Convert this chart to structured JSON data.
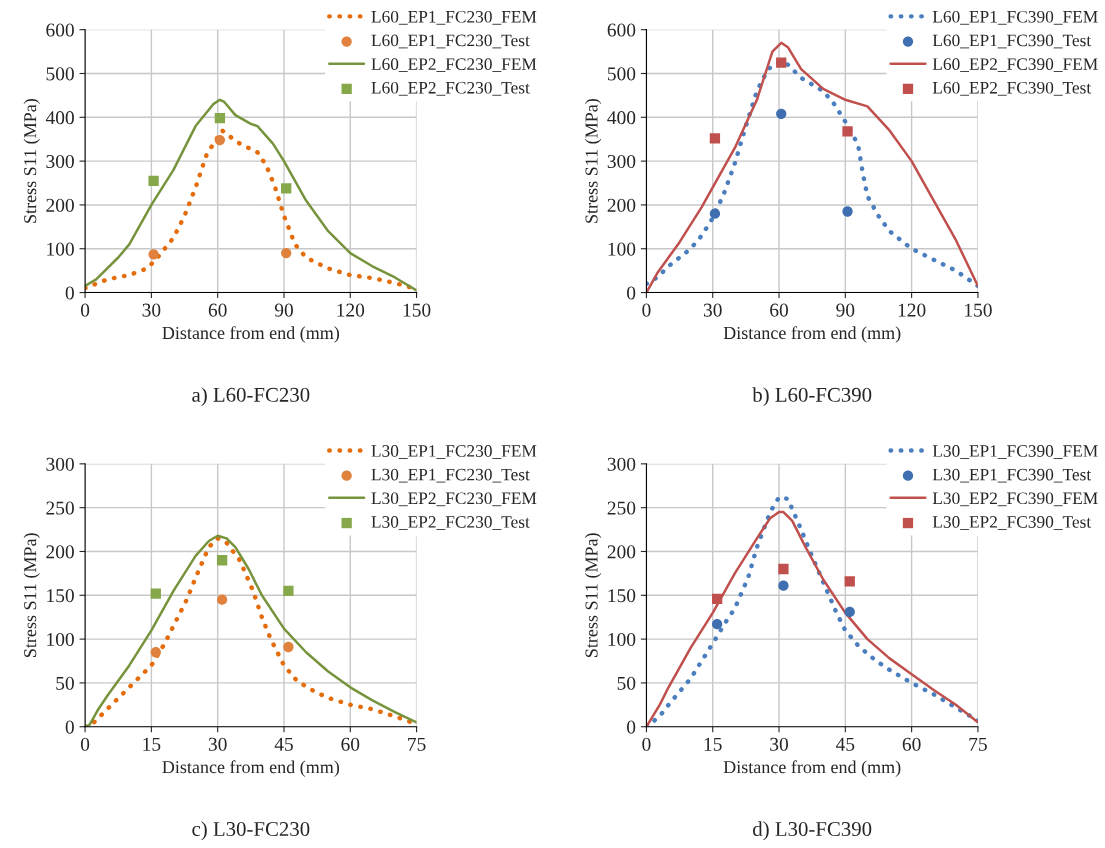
{
  "chart_data": [
    {
      "type": "line",
      "title": "a) L60-FC230",
      "xlabel": "Distance from end (mm)",
      "ylabel": "Stress S11 (MPa)",
      "xlim": [
        0,
        150
      ],
      "ylim": [
        0,
        600
      ],
      "xticks": [
        0,
        30,
        60,
        90,
        120,
        150
      ],
      "yticks": [
        0,
        100,
        200,
        300,
        400,
        500,
        600
      ],
      "grid": true,
      "legend": "top right",
      "series": [
        {
          "name": "L60_EP1_FC230_FEM",
          "type": "line",
          "line_style": "dotted",
          "color": "#e46c0a",
          "x": [
            0,
            10,
            20,
            28,
            32,
            40,
            45,
            50,
            55,
            60,
            62,
            65,
            70,
            78,
            82,
            86,
            90,
            95,
            100,
            110,
            120,
            130,
            140,
            150
          ],
          "values": [
            10,
            30,
            40,
            55,
            75,
            125,
            175,
            240,
            315,
            355,
            370,
            358,
            340,
            320,
            290,
            240,
            175,
            110,
            80,
            55,
            40,
            33,
            22,
            8
          ]
        },
        {
          "name": "L60_EP1_FC230_Test",
          "type": "scatter",
          "marker": "circle",
          "color": "#e0823d",
          "x": [
            31,
            61,
            91
          ],
          "values": [
            87,
            348,
            90
          ]
        },
        {
          "name": "L60_EP2_FC230_FEM",
          "type": "line",
          "line_style": "solid",
          "color": "#77933c",
          "x": [
            0,
            5,
            15,
            20,
            30,
            40,
            50,
            58,
            61,
            63,
            68,
            75,
            78,
            85,
            90,
            100,
            110,
            120,
            130,
            140,
            150
          ],
          "values": [
            15,
            30,
            80,
            110,
            200,
            280,
            380,
            430,
            440,
            435,
            405,
            385,
            380,
            340,
            300,
            210,
            140,
            90,
            60,
            35,
            5
          ]
        },
        {
          "name": "L60_EP2_FC230_Test",
          "type": "scatter",
          "marker": "square",
          "color": "#86a84a",
          "x": [
            31,
            61,
            91
          ],
          "values": [
            255,
            398,
            238
          ]
        }
      ]
    },
    {
      "type": "line",
      "title": "b) L60-FC390",
      "xlabel": "Distance from end (mm)",
      "ylabel": "Stress S11 (MPa)",
      "xlim": [
        0,
        150
      ],
      "ylim": [
        0,
        600
      ],
      "xticks": [
        0,
        30,
        60,
        90,
        120,
        150
      ],
      "yticks": [
        0,
        100,
        200,
        300,
        400,
        500,
        600
      ],
      "grid": true,
      "legend": "top right",
      "series": [
        {
          "name": "L60_EP1_FC390_FEM",
          "type": "line",
          "line_style": "dotted",
          "color": "#4a7ebf",
          "x": [
            0,
            5,
            10,
            15,
            20,
            25,
            30,
            35,
            40,
            45,
            50,
            55,
            60,
            63,
            70,
            80,
            85,
            90,
            94,
            96,
            98,
            100,
            105,
            110,
            115,
            120,
            130,
            140,
            150
          ],
          "values": [
            20,
            35,
            60,
            80,
            100,
            130,
            170,
            225,
            295,
            380,
            460,
            510,
            525,
            525,
            490,
            460,
            430,
            390,
            355,
            330,
            270,
            220,
            175,
            140,
            120,
            100,
            75,
            50,
            15
          ]
        },
        {
          "name": "L60_EP1_FC390_Test",
          "type": "scatter",
          "marker": "circle",
          "color": "#3f6fb0",
          "x": [
            31,
            61,
            91
          ],
          "values": [
            180,
            408,
            185
          ]
        },
        {
          "name": "L60_EP2_FC390_FEM",
          "type": "line",
          "line_style": "solid",
          "color": "#c0504d",
          "x": [
            0,
            5,
            15,
            25,
            30,
            40,
            50,
            57,
            61,
            64,
            70,
            80,
            90,
            100,
            110,
            120,
            130,
            140,
            150
          ],
          "values": [
            0,
            45,
            115,
            195,
            240,
            330,
            440,
            550,
            570,
            560,
            510,
            465,
            440,
            425,
            370,
            300,
            210,
            120,
            15
          ]
        },
        {
          "name": "L60_EP2_FC390_Test",
          "type": "scatter",
          "marker": "square",
          "color": "#c0504d",
          "x": [
            31,
            61,
            91
          ],
          "values": [
            352,
            525,
            368
          ]
        }
      ]
    },
    {
      "type": "line",
      "title": "c) L30-FC230",
      "xlabel": "Distance from end (mm)",
      "ylabel": "Stress S11 (MPa)",
      "xlim": [
        0,
        75
      ],
      "ylim": [
        0,
        300
      ],
      "xticks": [
        0,
        15,
        30,
        45,
        60,
        75
      ],
      "yticks": [
        0,
        50,
        100,
        150,
        200,
        250,
        300
      ],
      "grid": true,
      "legend": "top right",
      "series": [
        {
          "name": "L30_EP1_FC230_FEM",
          "type": "line",
          "line_style": "dotted",
          "color": "#e46c0a",
          "x": [
            0,
            2,
            5,
            10,
            15,
            18,
            20,
            23,
            25,
            28,
            30,
            32,
            35,
            38,
            40,
            42,
            45,
            48,
            52,
            55,
            60,
            65,
            70,
            75
          ],
          "values": [
            0,
            5,
            20,
            45,
            70,
            95,
            115,
            145,
            170,
            205,
            215,
            210,
            190,
            155,
            125,
            100,
            70,
            52,
            40,
            33,
            25,
            20,
            12,
            3
          ]
        },
        {
          "name": "L30_EP1_FC230_Test",
          "type": "scatter",
          "marker": "circle",
          "color": "#e0823d",
          "x": [
            16,
            31,
            46
          ],
          "values": [
            85,
            145,
            91
          ]
        },
        {
          "name": "L30_EP2_FC230_FEM",
          "type": "line",
          "line_style": "solid",
          "color": "#77933c",
          "x": [
            0,
            1,
            3,
            5,
            10,
            15,
            20,
            25,
            28,
            30,
            32,
            34,
            37,
            40,
            45,
            50,
            55,
            60,
            65,
            70,
            75
          ],
          "values": [
            0,
            2,
            20,
            35,
            70,
            110,
            155,
            195,
            212,
            218,
            215,
            205,
            180,
            150,
            112,
            85,
            63,
            45,
            30,
            17,
            5
          ]
        },
        {
          "name": "L30_EP2_FC230_Test",
          "type": "scatter",
          "marker": "square",
          "color": "#86a84a",
          "x": [
            16,
            31,
            46
          ],
          "values": [
            152,
            190,
            155
          ]
        }
      ]
    },
    {
      "type": "line",
      "title": "d) L30-FC390",
      "xlabel": "Distance from end (mm)",
      "ylabel": "Stress S11 (MPa)",
      "xlim": [
        0,
        75
      ],
      "ylim": [
        0,
        300
      ],
      "xticks": [
        0,
        15,
        30,
        45,
        60,
        75
      ],
      "yticks": [
        0,
        50,
        100,
        150,
        200,
        250,
        300
      ],
      "grid": true,
      "legend": "top right",
      "series": [
        {
          "name": "L30_EP1_FC390_FEM",
          "type": "line",
          "line_style": "dotted",
          "color": "#4a7ebf",
          "x": [
            0,
            3,
            5,
            10,
            15,
            18,
            20,
            23,
            25,
            28,
            30,
            32,
            35,
            37,
            40,
            43,
            45,
            48,
            52,
            55,
            60,
            65,
            70,
            75
          ],
          "values": [
            0,
            12,
            25,
            55,
            95,
            120,
            135,
            170,
            205,
            245,
            262,
            260,
            225,
            200,
            165,
            130,
            110,
            92,
            75,
            65,
            50,
            37,
            22,
            7
          ]
        },
        {
          "name": "L30_EP1_FC390_Test",
          "type": "scatter",
          "marker": "circle",
          "color": "#3f6fb0",
          "x": [
            16,
            31,
            46
          ],
          "values": [
            117,
            161,
            131
          ]
        },
        {
          "name": "L30_EP2_FC390_FEM",
          "type": "line",
          "line_style": "solid",
          "color": "#c0504d",
          "x": [
            0,
            3,
            5,
            10,
            15,
            20,
            25,
            28,
            30,
            31,
            33,
            36,
            40,
            45,
            50,
            55,
            60,
            65,
            70,
            75
          ],
          "values": [
            0,
            25,
            45,
            90,
            130,
            175,
            215,
            238,
            245,
            245,
            235,
            205,
            168,
            130,
            100,
            78,
            60,
            42,
            25,
            5
          ]
        },
        {
          "name": "L30_EP2_FC390_Test",
          "type": "scatter",
          "marker": "square",
          "color": "#c0504d",
          "x": [
            16,
            31,
            46
          ],
          "values": [
            146,
            180,
            166
          ]
        }
      ]
    }
  ]
}
